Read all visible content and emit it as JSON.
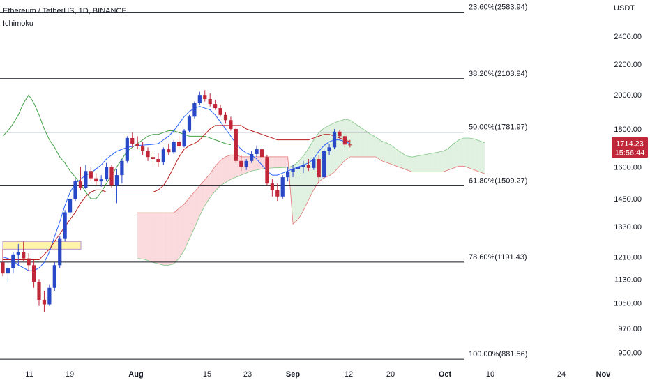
{
  "header": {
    "symbol": "Ethereum / TetherUS, 1D, BINANCE",
    "indicator": "Ichimoku"
  },
  "price_axis": {
    "unit": "USDT",
    "labels": [
      "2400.00",
      "2200.00",
      "2000.00",
      "1800.00",
      "1600.00",
      "1450.00",
      "1330.00",
      "1210.00",
      "1130.00",
      "1050.00",
      "970.00",
      "900.00"
    ],
    "current_price": "1714.23",
    "countdown": "15:56:44"
  },
  "colors": {
    "up": "#2848c8",
    "down": "#c0283a",
    "cloud_bear": "#f9d4d7",
    "cloud_bull": "#dcefdc",
    "tenkan": "#2962ff",
    "kijun": "#b71c1c",
    "chikou": "#43a047",
    "zone": "#fff3a0"
  },
  "chart_data": {
    "type": "candlestick",
    "title": "Ethereum / TetherUS, 1D, BINANCE",
    "indicator": "Ichimoku",
    "ylabel": "USDT",
    "y_scale": "log",
    "ylim": [
      880,
      2650
    ],
    "x_tick_labels": [
      "11",
      "19",
      "Aug",
      "15",
      "23",
      "Sep",
      "12",
      "20",
      "Oct",
      "10",
      "24",
      "Nov"
    ],
    "fibonacci_levels": [
      {
        "label": "23.60%(2583.94)",
        "value": 2583.94
      },
      {
        "label": "38.20%(2103.94)",
        "value": 2103.94
      },
      {
        "label": "50.00%(1781.97)",
        "value": 1781.97
      },
      {
        "label": "61.80%(1509.27)",
        "value": 1509.27
      },
      {
        "label": "78.60%(1191.43)",
        "value": 1191.43
      },
      {
        "label": "100.00%(881.56)",
        "value": 881.56
      }
    ],
    "highlight_zone": {
      "low": 1240,
      "high": 1270
    },
    "candles": [
      [
        1190,
        1240,
        1140,
        1150
      ],
      [
        1150,
        1180,
        1120,
        1170
      ],
      [
        1170,
        1230,
        1150,
        1220
      ],
      [
        1220,
        1260,
        1180,
        1230
      ],
      [
        1230,
        1270,
        1195,
        1205
      ],
      [
        1205,
        1225,
        1160,
        1180
      ],
      [
        1180,
        1200,
        1100,
        1120
      ],
      [
        1120,
        1130,
        1040,
        1060
      ],
      [
        1060,
        1090,
        1020,
        1045
      ],
      [
        1045,
        1110,
        1040,
        1100
      ],
      [
        1100,
        1190,
        1090,
        1180
      ],
      [
        1180,
        1290,
        1170,
        1280
      ],
      [
        1280,
        1400,
        1270,
        1390
      ],
      [
        1390,
        1460,
        1380,
        1450
      ],
      [
        1450,
        1540,
        1440,
        1530
      ],
      [
        1530,
        1600,
        1490,
        1500
      ],
      [
        1500,
        1610,
        1495,
        1580
      ],
      [
        1580,
        1600,
        1530,
        1545
      ],
      [
        1545,
        1570,
        1510,
        1530
      ],
      [
        1530,
        1560,
        1505,
        1540
      ],
      [
        1540,
        1620,
        1530,
        1600
      ],
      [
        1600,
        1610,
        1500,
        1510
      ],
      [
        1510,
        1590,
        1430,
        1560
      ],
      [
        1560,
        1640,
        1520,
        1630
      ],
      [
        1630,
        1760,
        1620,
        1750
      ],
      [
        1750,
        1780,
        1700,
        1720
      ],
      [
        1720,
        1760,
        1690,
        1705
      ],
      [
        1705,
        1730,
        1660,
        1680
      ],
      [
        1680,
        1700,
        1630,
        1650
      ],
      [
        1650,
        1680,
        1610,
        1640
      ],
      [
        1640,
        1670,
        1600,
        1625
      ],
      [
        1625,
        1700,
        1610,
        1690
      ],
      [
        1690,
        1720,
        1660,
        1675
      ],
      [
        1675,
        1740,
        1665,
        1730
      ],
      [
        1730,
        1760,
        1690,
        1705
      ],
      [
        1705,
        1800,
        1700,
        1790
      ],
      [
        1790,
        1880,
        1780,
        1870
      ],
      [
        1870,
        1960,
        1860,
        1950
      ],
      [
        1950,
        2020,
        1940,
        2000
      ],
      [
        2000,
        2030,
        1960,
        1975
      ],
      [
        1975,
        2010,
        1930,
        1945
      ],
      [
        1945,
        1970,
        1910,
        1920
      ],
      [
        1920,
        1940,
        1870,
        1880
      ],
      [
        1880,
        1900,
        1830,
        1850
      ],
      [
        1850,
        1870,
        1790,
        1800
      ],
      [
        1800,
        1810,
        1620,
        1630
      ],
      [
        1630,
        1660,
        1580,
        1600
      ],
      [
        1600,
        1640,
        1585,
        1630
      ],
      [
        1630,
        1680,
        1620,
        1665
      ],
      [
        1665,
        1710,
        1650,
        1690
      ],
      [
        1690,
        1700,
        1640,
        1650
      ],
      [
        1650,
        1660,
        1510,
        1520
      ],
      [
        1520,
        1540,
        1460,
        1490
      ],
      [
        1490,
        1520,
        1440,
        1460
      ],
      [
        1460,
        1560,
        1450,
        1550
      ],
      [
        1550,
        1600,
        1530,
        1575
      ],
      [
        1575,
        1610,
        1550,
        1590
      ],
      [
        1590,
        1620,
        1560,
        1600
      ],
      [
        1600,
        1630,
        1570,
        1610
      ],
      [
        1610,
        1640,
        1580,
        1595
      ],
      [
        1595,
        1650,
        1585,
        1640
      ],
      [
        1640,
        1660,
        1520,
        1550
      ],
      [
        1550,
        1690,
        1540,
        1680
      ],
      [
        1680,
        1720,
        1660,
        1700
      ],
      [
        1700,
        1800,
        1690,
        1785
      ],
      [
        1785,
        1795,
        1740,
        1760
      ],
      [
        1760,
        1770,
        1700,
        1715
      ],
      [
        1715,
        1740,
        1700,
        1714
      ]
    ],
    "tenkan_sen": [
      1210,
      1205,
      1195,
      1180,
      1170,
      1160,
      1160,
      1170,
      1190,
      1230,
      1290,
      1350,
      1420,
      1480,
      1520,
      1540,
      1560,
      1570,
      1590,
      1610,
      1640,
      1660,
      1680,
      1690,
      1700,
      1705,
      1710,
      1712,
      1714,
      1716,
      1720,
      1740,
      1760,
      1790,
      1830,
      1870,
      1900,
      1920,
      1930,
      1920,
      1910,
      1880,
      1840,
      1800,
      1760,
      1720,
      1690,
      1670,
      1660,
      1640,
      1610,
      1580,
      1560,
      1560,
      1570,
      1580,
      1590,
      1600,
      1610,
      1620,
      1640,
      1680,
      1710,
      1730,
      1740,
      1740,
      1730,
      1720
    ],
    "kijun_sen": [
      1200,
      1200,
      1200,
      1200,
      1200,
      1200,
      1200,
      1200,
      1220,
      1240,
      1270,
      1300,
      1330,
      1360,
      1390,
      1430,
      1460,
      1480,
      1490,
      1490,
      1480,
      1480,
      1480,
      1480,
      1480,
      1480,
      1480,
      1480,
      1480,
      1480,
      1490,
      1510,
      1550,
      1600,
      1650,
      1690,
      1710,
      1720,
      1740,
      1770,
      1800,
      1820,
      1820,
      1820,
      1820,
      1820,
      1820,
      1800,
      1790,
      1780,
      1770,
      1760,
      1750,
      1740,
      1740,
      1740,
      1740,
      1740,
      1740,
      1740,
      1750,
      1760,
      1770,
      1770,
      1760,
      1750,
      1740,
      1730
    ],
    "chikou_span": [
      1760,
      1790,
      1830,
      1880,
      1950,
      2000,
      1950,
      1880,
      1800,
      1740,
      1700,
      1650,
      1620,
      1580,
      1550,
      1520,
      1480,
      1450,
      1450,
      1480,
      1520,
      1560,
      1600,
      1640,
      1680,
      1700,
      1720,
      1740,
      1760,
      1770,
      1770,
      1780,
      1790,
      1790,
      1780,
      1770,
      1760,
      1760,
      1760,
      1760,
      1750,
      1740,
      1730,
      1720,
      1714
    ]
  }
}
